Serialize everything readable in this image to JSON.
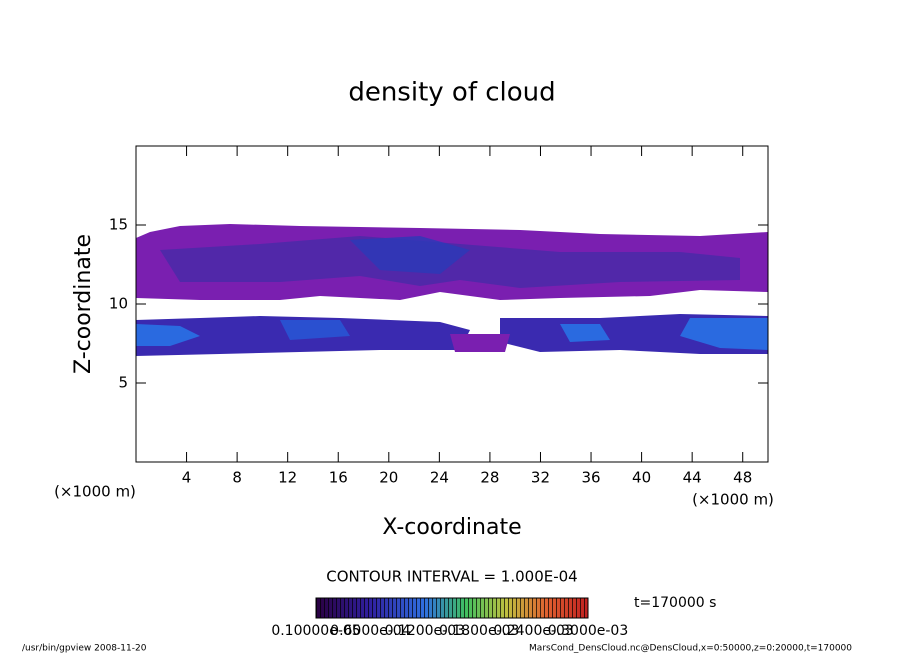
{
  "chart_data": {
    "type": "contour",
    "title": "density of cloud",
    "x_label": "X-coordinate",
    "y_label": "Z-coordinate",
    "x_unit_left": "(×1000 m)",
    "x_unit_right": "(×1000 m)",
    "xlim": [
      0,
      50
    ],
    "ylim": [
      0,
      20
    ],
    "xticks": [
      4,
      8,
      12,
      16,
      20,
      24,
      28,
      32,
      36,
      40,
      44,
      48
    ],
    "yticks": [
      5,
      10,
      15
    ],
    "contour_interval": "CONTOUR INTERVAL = 1.000E-04",
    "time_label": "t=170000 s",
    "colorbar_labels": [
      "0.10000e-05",
      "0.6000e-04",
      "0.1200e-03",
      "0.1800e-03",
      "0.2400e-03",
      "0.3000e-03"
    ],
    "footer_left": "/usr/bin/gpview   2008-11-20",
    "footer_right": "MarsCond_DensCloud.nc@DensCloud,x=0:50000,z=0:20000,t=170000"
  }
}
